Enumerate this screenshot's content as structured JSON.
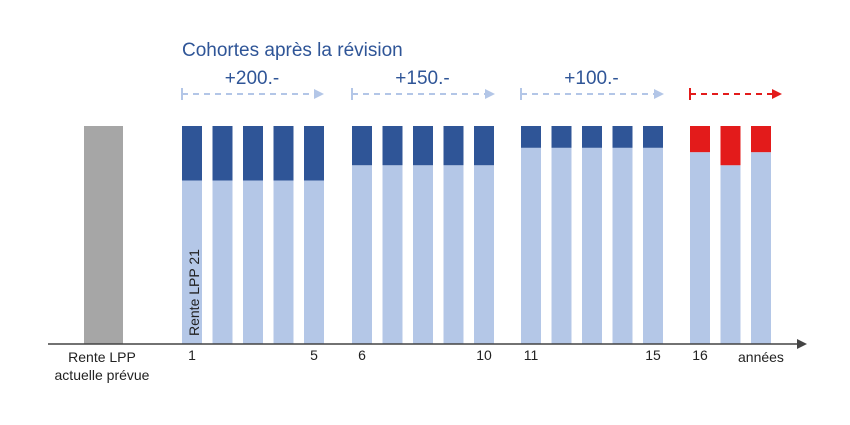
{
  "chart_data": {
    "type": "bar",
    "title": "Cohortes après la révision",
    "xlabel": "années",
    "baseline": {
      "label_line1": "Rente LPP",
      "label_line2": "actuelle prévue",
      "value": 100
    },
    "inner_label": "Rente LPP 21",
    "tick_labels": [
      {
        "cohort": 1,
        "text": "1"
      },
      {
        "cohort": 5,
        "text": "5"
      },
      {
        "cohort": 6,
        "text": "6"
      },
      {
        "cohort": 10,
        "text": "10"
      },
      {
        "cohort": 11,
        "text": "11"
      },
      {
        "cohort": 15,
        "text": "15"
      },
      {
        "cohort": 16,
        "text": "16"
      }
    ],
    "groups": [
      {
        "label": "+200.-",
        "arrow_color": "#b3c6e7",
        "top_color": "#2f5597"
      },
      {
        "label": "+150.-",
        "arrow_color": "#b3c6e7",
        "top_color": "#2f5597"
      },
      {
        "label": "+100.-",
        "arrow_color": "#b3c6e7",
        "top_color": "#2f5597"
      },
      {
        "label": "",
        "arrow_color": "#e31b1b",
        "top_color": "#e31b1b"
      }
    ],
    "series": [
      {
        "values_lpp21": [
          75,
          75,
          75,
          75,
          75,
          82,
          82,
          82,
          82,
          82,
          90,
          90,
          90,
          90,
          90,
          88,
          82,
          88
        ]
      },
      {
        "values_supplement": [
          25,
          25,
          25,
          25,
          25,
          18,
          18,
          18,
          18,
          18,
          10,
          10,
          10,
          10,
          10,
          12,
          18,
          12
        ]
      }
    ],
    "ylim": [
      0,
      100
    ],
    "colors": {
      "baseline": "#a6a6a6",
      "lpp21": "#b4c7e7",
      "supplement": "#2f5597",
      "supplement_last": "#e31b1b",
      "title": "#2f5597",
      "axis": "#444444"
    }
  }
}
